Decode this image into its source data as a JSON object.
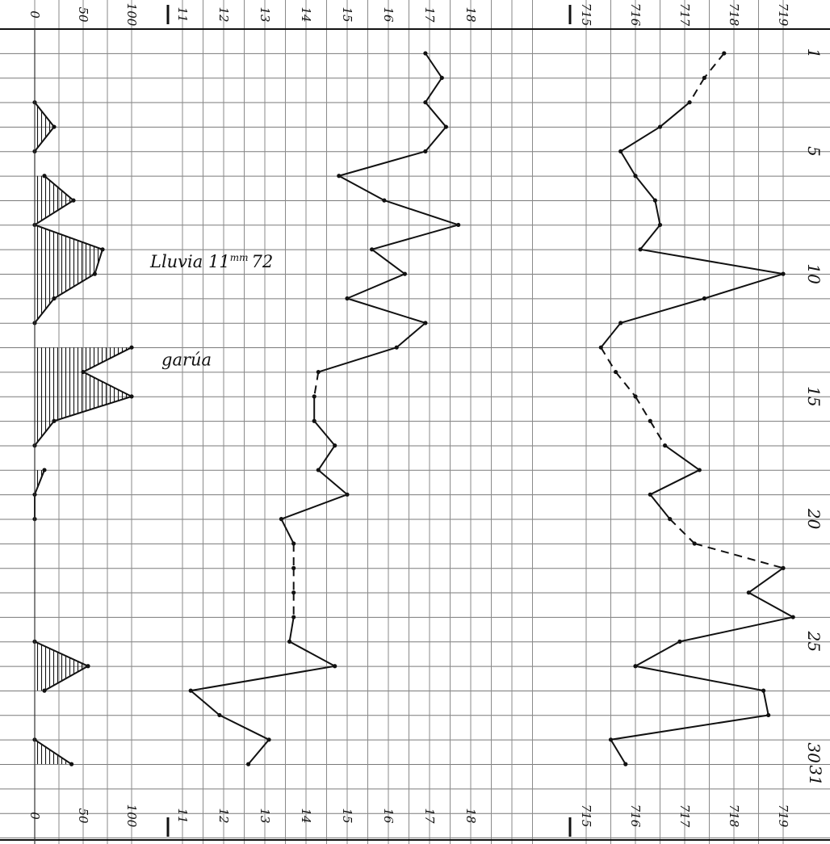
{
  "chart_data": [
    {
      "type": "area",
      "orientation": "vertical-days",
      "xlim": [
        0,
        100
      ],
      "tick_labels": [
        "0",
        "50",
        "100"
      ],
      "days": [
        3,
        4,
        5,
        6,
        7,
        8,
        9,
        10,
        11,
        12,
        13,
        14,
        15,
        16,
        17,
        18,
        19,
        20,
        25,
        26,
        27,
        29,
        30
      ],
      "values": [
        0,
        20,
        0,
        10,
        40,
        0,
        70,
        62,
        20,
        0,
        100,
        50,
        100,
        20,
        0,
        10,
        0,
        0,
        0,
        55,
        10,
        0,
        38
      ],
      "area_segments": [
        [
          3,
          5
        ],
        [
          6,
          8
        ],
        [
          8,
          12
        ],
        [
          13,
          17
        ],
        [
          18,
          20
        ],
        [
          25,
          27
        ],
        [
          29,
          30
        ]
      ],
      "annotations": [
        {
          "day": 10,
          "text_prefix": "Lluvia 11",
          "text_sup": "mm",
          "text_suffix": "72"
        },
        {
          "day": 14,
          "text": "garúa"
        }
      ]
    },
    {
      "type": "line",
      "xlim": [
        11,
        18
      ],
      "tick_labels": [
        "11",
        "12",
        "13",
        "14",
        "15",
        "16",
        "17",
        "18"
      ],
      "days": [
        1,
        2,
        3,
        4,
        5,
        6,
        7,
        8,
        9,
        10,
        11,
        12,
        13,
        14,
        15,
        16,
        17,
        18,
        19,
        20,
        21,
        22,
        23,
        24,
        25,
        26,
        27,
        28,
        29,
        30
      ],
      "values": [
        16.9,
        17.3,
        16.9,
        17.4,
        16.9,
        14.8,
        15.9,
        17.7,
        15.6,
        16.4,
        15.0,
        16.9,
        16.2,
        14.3,
        14.2,
        14.2,
        14.7,
        14.3,
        15.0,
        13.4,
        13.7,
        13.7,
        13.7,
        13.7,
        13.6,
        14.7,
        11.2,
        11.9,
        13.1,
        12.6
      ],
      "dashed_days": [
        [
          14,
          15
        ],
        [
          21,
          24
        ]
      ]
    },
    {
      "type": "line",
      "xlim": [
        715,
        719
      ],
      "tick_labels": [
        "715",
        "716",
        "717",
        "718",
        "719"
      ],
      "days": [
        1,
        2,
        3,
        4,
        5,
        6,
        7,
        8,
        9,
        10,
        11,
        12,
        13,
        14,
        15,
        16,
        17,
        18,
        19,
        20,
        21,
        22,
        23,
        24,
        25,
        26,
        27,
        28,
        29,
        30
      ],
      "values": [
        717.8,
        717.4,
        717.1,
        716.5,
        715.7,
        716.0,
        716.4,
        716.5,
        716.1,
        719.0,
        717.4,
        715.7,
        715.3,
        715.6,
        716.0,
        716.3,
        716.6,
        717.3,
        716.3,
        716.7,
        717.2,
        719.0,
        718.3,
        719.2,
        716.9,
        716.0,
        718.6,
        718.7,
        715.5,
        715.8
      ],
      "dashed_days": [
        [
          1,
          3
        ],
        [
          13,
          17
        ],
        [
          20,
          22
        ]
      ]
    }
  ],
  "day_labels": [
    "1",
    "5",
    "10",
    "15",
    "20",
    "25",
    "30",
    "31"
  ]
}
